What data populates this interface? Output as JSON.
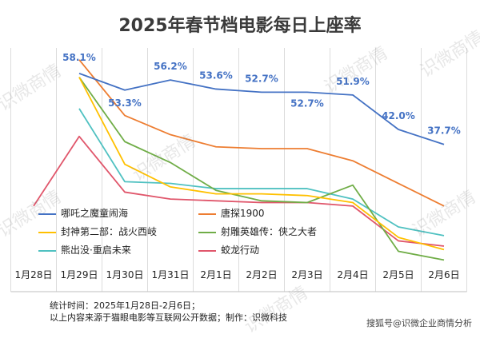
{
  "page": {
    "footnotes": [
      "统计时间：2025年1月28日-2月6日；",
      "以上内容来源于猫眼电影等互联网公开数据；制作：识微科技"
    ],
    "credit": "搜狐号@识微企业商情分析",
    "watermark": "识微商情"
  },
  "chart_data": {
    "type": "line",
    "title": "2025年春节档电影每日上座率",
    "categories": [
      "1月28日",
      "1月29日",
      "1月30日",
      "1月31日",
      "2月1日",
      "2月2日",
      "2月3日",
      "2月4日",
      "2月5日",
      "2月6日"
    ],
    "ylim": [
      0,
      70
    ],
    "grid": "vertical",
    "legend_position": "bottom",
    "series": [
      {
        "name": "哪吒之魔童闹海",
        "color": "#4472C4",
        "values": [
          null,
          58.1,
          53.3,
          56.2,
          53.6,
          52.7,
          52.7,
          51.9,
          42.0,
          37.7
        ],
        "labels": [
          "",
          "58.1%",
          "53.3%",
          "56.2%",
          "53.6%",
          "52.7%",
          "52.7%",
          "51.9%",
          "42.0%",
          "37.7%"
        ]
      },
      {
        "name": "唐探1900",
        "color": "#ED7D31",
        "values": [
          null,
          62.0,
          46.0,
          40.5,
          37.0,
          36.5,
          36.5,
          33.0,
          26.5,
          20.0
        ]
      },
      {
        "name": "封神第二部：战火西岐",
        "color": "#FFC000",
        "values": [
          null,
          57.0,
          32.0,
          25.5,
          23.5,
          23.5,
          23.0,
          21.0,
          11.0,
          7.5
        ]
      },
      {
        "name": "射雕英雄传：侠之大者",
        "color": "#70AD47",
        "values": [
          null,
          57.0,
          38.5,
          32.5,
          24.5,
          21.5,
          21.0,
          26.0,
          7.0,
          4.5
        ]
      },
      {
        "name": "熊出没·重启未来",
        "color": "#4FC1C1",
        "values": [
          null,
          48.0,
          27.0,
          26.5,
          25.0,
          25.0,
          25.0,
          22.0,
          14.0,
          11.5
        ]
      },
      {
        "name": "蛟龙行动",
        "color": "#E0566B",
        "values": [
          20.0,
          40.0,
          24.0,
          22.0,
          21.5,
          21.0,
          21.0,
          20.0,
          10.0,
          8.5
        ]
      }
    ]
  }
}
